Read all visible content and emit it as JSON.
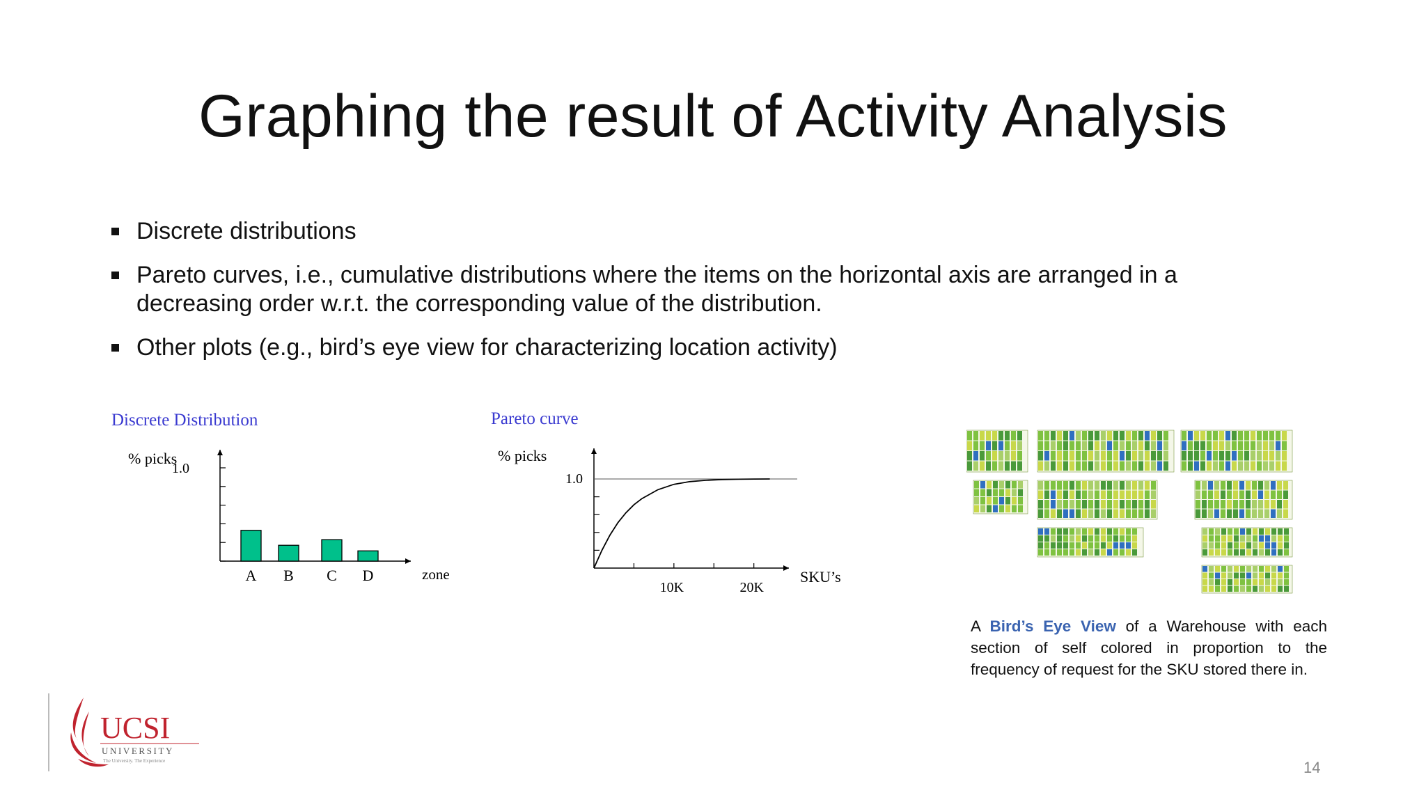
{
  "slide": {
    "title": "Graphing the result of Activity Analysis",
    "page_number": "14"
  },
  "bullets": [
    {
      "text": "Discrete distributions"
    },
    {
      "text": "Pareto curves, i.e., cumulative distributions where the items on the horizontal axis are arranged in a decreasing order w.r.t. the corresponding value of the distribution."
    },
    {
      "text": "Other plots (e.g., bird’s eye view for characterizing location activity)"
    }
  ],
  "chart_data": [
    {
      "type": "bar",
      "title": "Discrete Distribution",
      "ylabel": "% picks",
      "xlabel": "zone",
      "y_tick_label": "1.0",
      "ylim": [
        0,
        1.0
      ],
      "categories": [
        "A",
        "B",
        "C",
        "D"
      ],
      "values": [
        0.33,
        0.17,
        0.23,
        0.11
      ],
      "bar_color": "#00c08b"
    },
    {
      "type": "line",
      "title": "Pareto curve",
      "ylabel": "% picks",
      "xlabel": "SKU’s",
      "y_tick_label": "1.0",
      "ylim": [
        0,
        1.0
      ],
      "xlim": [
        0,
        24
      ],
      "x_tick_labels": [
        "10K",
        "20K"
      ],
      "x_tick_values": [
        10,
        20
      ],
      "x_unit": "K",
      "series": [
        {
          "x": [
            0,
            1,
            2,
            3,
            4,
            5,
            6,
            8,
            10,
            12,
            14,
            16,
            18,
            20,
            22
          ],
          "y": [
            0,
            0.2,
            0.37,
            0.51,
            0.62,
            0.71,
            0.78,
            0.88,
            0.94,
            0.97,
            0.985,
            0.993,
            0.997,
            0.999,
            1.0
          ]
        }
      ]
    }
  ],
  "birds_eye": {
    "caption_prefix": "A",
    "caption_highlight": "Bird’s Eye View",
    "caption_rest": "of a Warehouse with each section of self colored in proportion to the frequency of request for the SKU stored there in.",
    "colors": [
      "#7fc241",
      "#4a9a3a",
      "#2f6fc0",
      "#c8d84a",
      "#a9cf6a"
    ]
  },
  "logo": {
    "name": "UCSI",
    "subtitle": "UNIVERSITY",
    "tagline": "The University. The Experience",
    "color": "#c0232e"
  }
}
